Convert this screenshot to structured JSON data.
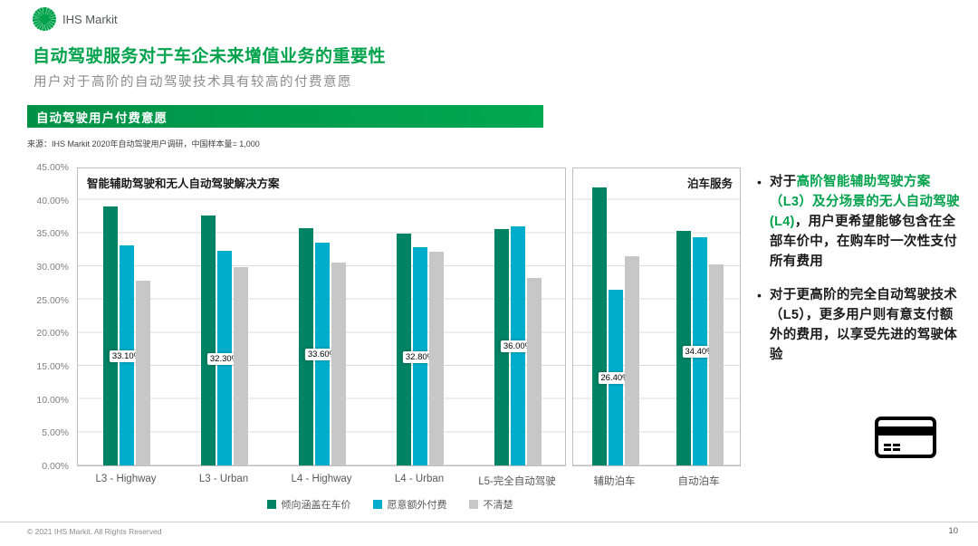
{
  "header": {
    "brand": "IHS Markit"
  },
  "title": "自动驾驶服务对于车企未来增值业务的重要性",
  "subtitle": "用户对于高阶的自动驾驶技术具有较高的付费意愿",
  "section_banner": "自动驾驶用户付费意愿",
  "source": "来源：IHS Markit 2020年自动驾驶用户调研，中国样本量= 1,000",
  "colors": {
    "brand_green": "#00A24C",
    "series_covered_in_price": "#008264",
    "series_pay_extra": "#00AECB",
    "series_unclear": "#C7C7C7"
  },
  "chart_data": {
    "type": "bar",
    "title": "自动驾驶用户付费意愿",
    "ylim": [
      0,
      45
    ],
    "yticks": [
      "0.00%",
      "5.00%",
      "10.00%",
      "15.00%",
      "20.00%",
      "25.00%",
      "30.00%",
      "35.00%",
      "40.00%",
      "45.00%"
    ],
    "grid": true,
    "legend_position": "bottom",
    "legend": [
      {
        "label": "倾向涵盖在车价",
        "color": "#008264"
      },
      {
        "label": "愿意额外付费",
        "color": "#00AECB"
      },
      {
        "label": "不清楚",
        "color": "#C7C7C7"
      }
    ],
    "panels": [
      {
        "title": "智能辅助驾驶和无人自动驾驶解决方案",
        "categories": [
          "L3 - Highway",
          "L3 - Urban",
          "L4 - Highway",
          "L4 - Urban",
          "L5-完全自动驾驶"
        ],
        "series": [
          {
            "name": "倾向涵盖在车价",
            "values": [
              39.0,
              37.6,
              35.7,
              34.9,
              35.6
            ]
          },
          {
            "name": "愿意额外付费",
            "values": [
              33.1,
              32.3,
              33.6,
              32.8,
              36.0
            ],
            "data_labels": [
              "33.10%",
              "32.30%",
              "33.60%",
              "32.80%",
              "36.00%"
            ]
          },
          {
            "name": "不清楚",
            "values": [
              27.8,
              29.9,
              30.6,
              32.2,
              28.2
            ]
          }
        ]
      },
      {
        "title": "泊车服务",
        "categories": [
          "辅助泊车",
          "自动泊车"
        ],
        "series": [
          {
            "name": "倾向涵盖在车价",
            "values": [
              41.9,
              35.3
            ]
          },
          {
            "name": "愿意额外付费",
            "values": [
              26.4,
              34.4
            ],
            "data_labels": [
              "26.40%",
              "34.40%"
            ]
          },
          {
            "name": "不清楚",
            "values": [
              31.5,
              30.3
            ]
          }
        ]
      }
    ]
  },
  "bullets": [
    {
      "prefix": "对于",
      "highlight": "高阶智能辅助驾驶方案 （L3）及分场景的无人自动驾驶(L4)",
      "rest": "，用户更希望能够包含在全部车价中，在购车时一次性支付所有费用"
    },
    {
      "prefix": "",
      "highlight": "",
      "rest": "对于更高阶的完全自动驾驶技术 （L5），更多用户则有意支付额外的费用，以享受先进的驾驶体验"
    }
  ],
  "icons": {
    "logo": "ihs-markit-globe",
    "card": "payment-card"
  },
  "footer": {
    "copyright": "© 2021 IHS Markit. All Rights Reserved",
    "page": "10"
  }
}
